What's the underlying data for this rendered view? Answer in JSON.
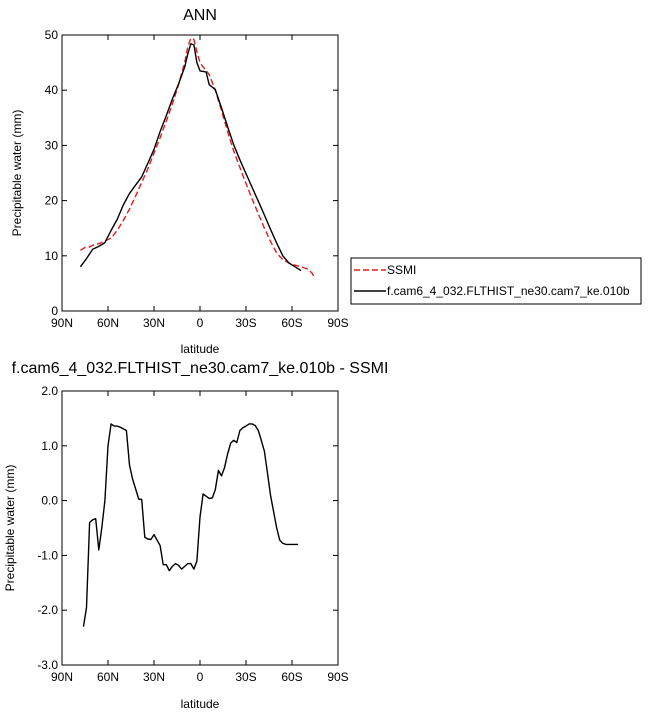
{
  "chart_data": [
    {
      "type": "line",
      "title": "ANN",
      "xlabel": "latitude",
      "ylabel": "Precipitable water (mm)",
      "xlim": [
        90,
        -90
      ],
      "ylim": [
        0,
        50
      ],
      "x_ticks": [
        90,
        60,
        30,
        0,
        -30,
        -60,
        -90
      ],
      "x_tick_labels": [
        "90N",
        "60N",
        "30N",
        "0",
        "30S",
        "60S",
        "90S"
      ],
      "y_ticks": [
        0,
        10,
        20,
        30,
        40,
        50
      ],
      "y_tick_labels": [
        "0",
        "10",
        "20",
        "30",
        "40",
        "50"
      ],
      "grid": false,
      "legend_position": "right",
      "series": [
        {
          "name": "SSMI",
          "color": "#e41a1c",
          "style": "dashed",
          "x": [
            78,
            75,
            72,
            70,
            66,
            62,
            58,
            54,
            50,
            46,
            42,
            38,
            34,
            30,
            26,
            22,
            18,
            14,
            10,
            8,
            6,
            4,
            2,
            0,
            -2,
            -4,
            -6,
            -10,
            -14,
            -18,
            -22,
            -26,
            -30,
            -34,
            -38,
            -42,
            -46,
            -50,
            -54,
            -58,
            -62,
            -66,
            -70,
            -73,
            -75
          ],
          "y": [
            11,
            11.5,
            11.6,
            11.9,
            12.2,
            12.7,
            13.2,
            14.6,
            16.4,
            18.5,
            20.8,
            23.3,
            25.8,
            28.6,
            31.4,
            34.4,
            37.5,
            41.0,
            45.0,
            47.8,
            49.4,
            49.2,
            47.0,
            45.0,
            44.2,
            43.6,
            42.8,
            40.0,
            36.3,
            32.5,
            29.0,
            26.0,
            23.1,
            20.3,
            17.6,
            15.0,
            12.6,
            10.5,
            9.3,
            8.7,
            8.3,
            8.0,
            7.6,
            6.9,
            5.9
          ]
        },
        {
          "name": "f.cam6_4_032.FLTHIST_ne30.cam7_ke.010b",
          "color": "#000000",
          "style": "solid",
          "x": [
            78,
            74,
            70,
            66,
            62,
            58,
            54,
            50,
            46,
            42,
            38,
            34,
            30,
            26,
            22,
            18,
            14,
            10,
            8,
            6,
            4,
            2,
            0,
            -2,
            -4,
            -6,
            -10,
            -14,
            -18,
            -22,
            -26,
            -30,
            -34,
            -38,
            -42,
            -46,
            -50,
            -54,
            -58,
            -62,
            -66
          ],
          "y": [
            8,
            9.5,
            11.2,
            11.7,
            12.4,
            14.6,
            16.6,
            19.2,
            21.3,
            22.8,
            24.3,
            26.8,
            29.3,
            32.5,
            35.4,
            38.4,
            41.1,
            44.2,
            46.5,
            48.4,
            48.2,
            45.0,
            43.5,
            43.4,
            43.3,
            41.0,
            40.1,
            36.8,
            33.4,
            30.1,
            27.4,
            24.9,
            22.4,
            19.9,
            17.4,
            14.8,
            12.3,
            10.0,
            8.7,
            8.0,
            7.3
          ]
        }
      ]
    },
    {
      "type": "line",
      "title": "f.cam6_4_032.FLTHIST_ne30.cam7_ke.010b - SSMI",
      "xlabel": "latitude",
      "ylabel": "Precipitable water (mm)",
      "xlim": [
        90,
        -90
      ],
      "ylim": [
        -3,
        2
      ],
      "x_ticks": [
        90,
        60,
        30,
        0,
        -30,
        -60,
        -90
      ],
      "x_tick_labels": [
        "90N",
        "60N",
        "30N",
        "0",
        "30S",
        "60S",
        "90S"
      ],
      "y_ticks": [
        2,
        1,
        0,
        -1,
        -2,
        -3
      ],
      "y_tick_labels": [
        "2.0",
        "1.0",
        "0.0",
        "-1.0",
        "-2.0",
        "-3.0"
      ],
      "grid": false,
      "series": [
        {
          "color": "#000000",
          "style": "solid",
          "x": [
            76,
            74,
            72,
            70,
            68,
            66,
            64,
            62,
            60,
            58,
            56,
            54,
            52,
            48,
            46,
            44,
            40,
            38,
            36,
            34,
            32,
            30,
            26,
            24,
            22,
            20,
            18,
            16,
            14,
            12,
            10,
            8,
            6,
            4,
            2,
            0,
            -2,
            -4,
            -6,
            -8,
            -10,
            -12,
            -14,
            -16,
            -18,
            -20,
            -22,
            -24,
            -26,
            -28,
            -30,
            -32,
            -34,
            -36,
            -38,
            -40,
            -42,
            -44,
            -46,
            -48,
            -50,
            -52,
            -54,
            -56,
            -58,
            -60,
            -62,
            -64
          ],
          "y": [
            -2.3,
            -1.95,
            -0.4,
            -0.35,
            -0.33,
            -0.9,
            -0.48,
            0.0,
            1.0,
            1.4,
            1.36,
            1.36,
            1.34,
            1.28,
            0.65,
            0.4,
            0.03,
            0.02,
            -0.67,
            -0.7,
            -0.71,
            -0.62,
            -0.82,
            -1.17,
            -1.17,
            -1.28,
            -1.2,
            -1.15,
            -1.18,
            -1.25,
            -1.2,
            -1.15,
            -1.15,
            -1.25,
            -1.1,
            -0.3,
            0.12,
            0.08,
            0.04,
            0.05,
            0.2,
            0.55,
            0.45,
            0.6,
            0.85,
            1.05,
            1.1,
            1.06,
            1.28,
            1.33,
            1.36,
            1.4,
            1.4,
            1.37,
            1.28,
            1.1,
            0.9,
            0.5,
            0.1,
            -0.2,
            -0.5,
            -0.72,
            -0.78,
            -0.8,
            -0.8,
            -0.8,
            -0.8,
            -0.8
          ]
        }
      ]
    }
  ]
}
